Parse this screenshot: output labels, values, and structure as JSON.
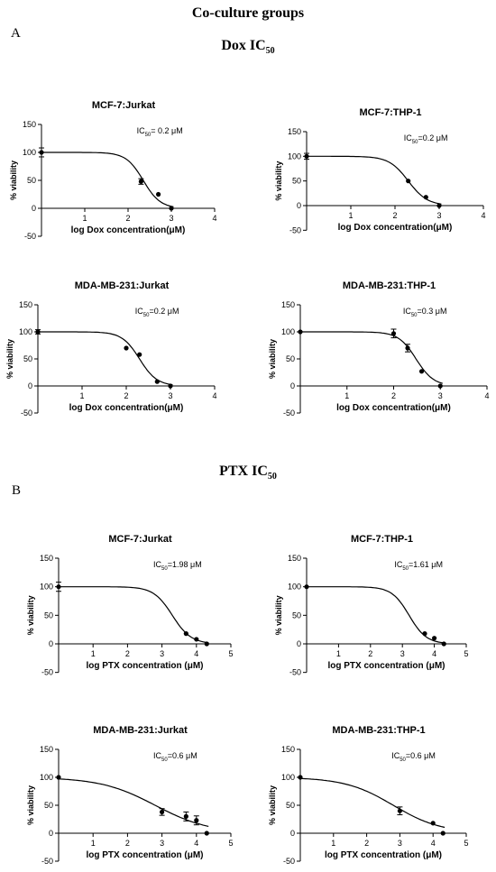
{
  "figure_title": "Co-culture groups",
  "section_a": {
    "letter": "A",
    "title_main": "Dox IC",
    "title_sub": "50"
  },
  "section_b": {
    "letter": "B",
    "title_main": "PTX IC",
    "title_sub": "50"
  },
  "ic50_prefix": "IC",
  "ic50_sub": "50",
  "chart_data": [
    {
      "type": "line",
      "title": "MCF-7:Jurkat",
      "xlabel": "log Dox concentration(μM)",
      "ylabel": "% viability",
      "ic50_value": "= 0.2 μM",
      "xlim": [
        0,
        4
      ],
      "ylim": [
        -50,
        150
      ],
      "xticks": [
        1,
        2,
        3,
        4
      ],
      "yticks": [
        -50,
        0,
        50,
        100,
        150
      ],
      "points": [
        {
          "x": 0,
          "y": 100,
          "err": 8
        },
        {
          "x": 2.3,
          "y": 48,
          "err": 5
        },
        {
          "x": 2.7,
          "y": 25
        },
        {
          "x": 3.0,
          "y": 0
        }
      ],
      "fit": {
        "top": 100,
        "bottom": 0,
        "logec50": 2.35,
        "hill": 2.2
      }
    },
    {
      "type": "line",
      "title": "MCF-7:THP-1",
      "xlabel": "log Dox concentration(μM)",
      "ylabel": "% viability",
      "ic50_value": "=0.2 μM",
      "xlim": [
        0,
        4
      ],
      "ylim": [
        -50,
        150
      ],
      "xticks": [
        1,
        2,
        3,
        4
      ],
      "yticks": [
        -50,
        0,
        50,
        100,
        150
      ],
      "points": [
        {
          "x": 0,
          "y": 100,
          "err": 6
        },
        {
          "x": 2.3,
          "y": 50
        },
        {
          "x": 2.7,
          "y": 17
        },
        {
          "x": 3.0,
          "y": 0
        }
      ],
      "fit": {
        "top": 100,
        "bottom": 0,
        "logec50": 2.3,
        "hill": 2.0
      }
    },
    {
      "type": "line",
      "title": "MDA-MB-231:Jurkat",
      "xlabel": "log Dox concentration(μM)",
      "ylabel": "% viability",
      "ic50_value": "=0.2 μM",
      "xlim": [
        0,
        4
      ],
      "ylim": [
        -50,
        150
      ],
      "xticks": [
        1,
        2,
        3,
        4
      ],
      "yticks": [
        -50,
        0,
        50,
        100,
        150
      ],
      "points": [
        {
          "x": 0,
          "y": 100,
          "err": 4
        },
        {
          "x": 2.0,
          "y": 70
        },
        {
          "x": 2.3,
          "y": 58
        },
        {
          "x": 2.7,
          "y": 8
        },
        {
          "x": 3.0,
          "y": 0
        }
      ],
      "fit": {
        "top": 100,
        "bottom": 0,
        "logec50": 2.3,
        "hill": 2.2
      }
    },
    {
      "type": "line",
      "title": "MDA-MB-231:THP-1",
      "xlabel": "log Dox concentration(μM)",
      "ylabel": "% viability",
      "ic50_value": "=0.3 μM",
      "xlim": [
        0,
        4
      ],
      "ylim": [
        -50,
        150
      ],
      "xticks": [
        1,
        2,
        3,
        4
      ],
      "yticks": [
        -50,
        0,
        50,
        100,
        150
      ],
      "points": [
        {
          "x": 0,
          "y": 100
        },
        {
          "x": 2.0,
          "y": 97,
          "err": 8
        },
        {
          "x": 2.3,
          "y": 70,
          "err": 7
        },
        {
          "x": 2.6,
          "y": 27
        },
        {
          "x": 3.0,
          "y": 0
        }
      ],
      "fit": {
        "top": 100,
        "bottom": 0,
        "logec50": 2.48,
        "hill": 2.3
      }
    },
    {
      "type": "line",
      "title": "MCF-7:Jurkat",
      "xlabel": "log PTX concentration (μM)",
      "ylabel": "% viability",
      "ic50_value": "=1.98 μM",
      "xlim": [
        0,
        5
      ],
      "ylim": [
        -50,
        150
      ],
      "xticks": [
        1,
        2,
        3,
        4,
        5
      ],
      "yticks": [
        -50,
        0,
        50,
        100,
        150
      ],
      "points": [
        {
          "x": 0,
          "y": 100,
          "err": 8
        },
        {
          "x": 3.7,
          "y": 18
        },
        {
          "x": 4.0,
          "y": 8
        },
        {
          "x": 4.3,
          "y": 0
        }
      ],
      "fit": {
        "top": 100,
        "bottom": 0,
        "logec50": 3.3,
        "hill": 1.6
      }
    },
    {
      "type": "line",
      "title": "MCF-7:THP-1",
      "xlabel": "log PTX concentration (μM)",
      "ylabel": "% viability",
      "ic50_value": "=1.61 μM",
      "xlim": [
        0,
        5
      ],
      "ylim": [
        -50,
        150
      ],
      "xticks": [
        1,
        2,
        3,
        4,
        5
      ],
      "yticks": [
        -50,
        0,
        50,
        100,
        150
      ],
      "points": [
        {
          "x": 0,
          "y": 100
        },
        {
          "x": 3.7,
          "y": 18
        },
        {
          "x": 4.0,
          "y": 10
        },
        {
          "x": 4.3,
          "y": 0
        }
      ],
      "fit": {
        "top": 100,
        "bottom": 0,
        "logec50": 3.21,
        "hill": 1.6
      }
    },
    {
      "type": "line",
      "title": "MDA-MB-231:Jurkat",
      "xlabel": "log PTX concentration (μM)",
      "ylabel": "% viability",
      "ic50_value": "=0.6 μM",
      "xlim": [
        0,
        5
      ],
      "ylim": [
        -50,
        150
      ],
      "xticks": [
        1,
        2,
        3,
        4,
        5
      ],
      "yticks": [
        -50,
        0,
        50,
        100,
        150
      ],
      "points": [
        {
          "x": 0,
          "y": 100
        },
        {
          "x": 3.0,
          "y": 38,
          "err": 6
        },
        {
          "x": 3.7,
          "y": 30,
          "err": 8
        },
        {
          "x": 4.0,
          "y": 23,
          "err": 8
        },
        {
          "x": 4.3,
          "y": 0
        }
      ],
      "fit": {
        "top": 100,
        "bottom": 0,
        "logec50": 2.8,
        "hill": 0.55
      }
    },
    {
      "type": "line",
      "title": "MDA-MB-231:THP-1",
      "xlabel": "log PTX concentration (μM)",
      "ylabel": "% viability",
      "ic50_value": "=0.6 μM",
      "xlim": [
        0,
        5
      ],
      "ylim": [
        -50,
        150
      ],
      "xticks": [
        1,
        2,
        3,
        4,
        5
      ],
      "yticks": [
        -50,
        0,
        50,
        100,
        150
      ],
      "points": [
        {
          "x": 0,
          "y": 100
        },
        {
          "x": 3.0,
          "y": 40,
          "err": 7
        },
        {
          "x": 4.0,
          "y": 18
        },
        {
          "x": 4.3,
          "y": 0
        }
      ],
      "fit": {
        "top": 100,
        "bottom": 0,
        "logec50": 2.8,
        "hill": 0.6
      }
    }
  ]
}
